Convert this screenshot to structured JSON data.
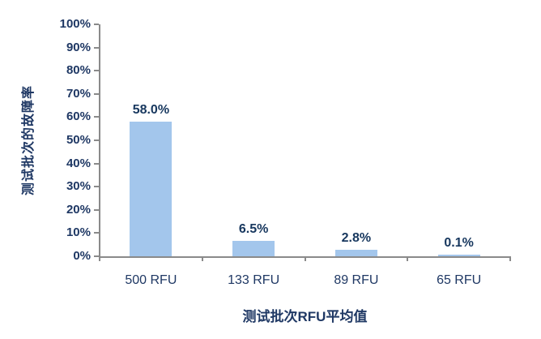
{
  "chart_data": {
    "type": "bar",
    "title": "",
    "categories": [
      "500 RFU",
      "133 RFU",
      "89 RFU",
      "65 RFU"
    ],
    "values": [
      58.0,
      6.5,
      2.8,
      0.1
    ],
    "data_labels": [
      "58.0%",
      "6.5%",
      "2.8%",
      "0.1%"
    ],
    "xlabel": "测试批次RFU平均值",
    "ylabel": "测试批次的故障率",
    "ylim": [
      0,
      100
    ],
    "y_ticks": [
      "0%",
      "10%",
      "20%",
      "30%",
      "40%",
      "50%",
      "60%",
      "70%",
      "80%",
      "90%",
      "100%"
    ],
    "grid": false,
    "legend": "none",
    "colors": {
      "bar": "#A3C6EC",
      "axis": "#8A8A8A",
      "tick_text": "#1F3864",
      "title_text": "#1F3864",
      "data_label_text": "#17375E"
    }
  }
}
